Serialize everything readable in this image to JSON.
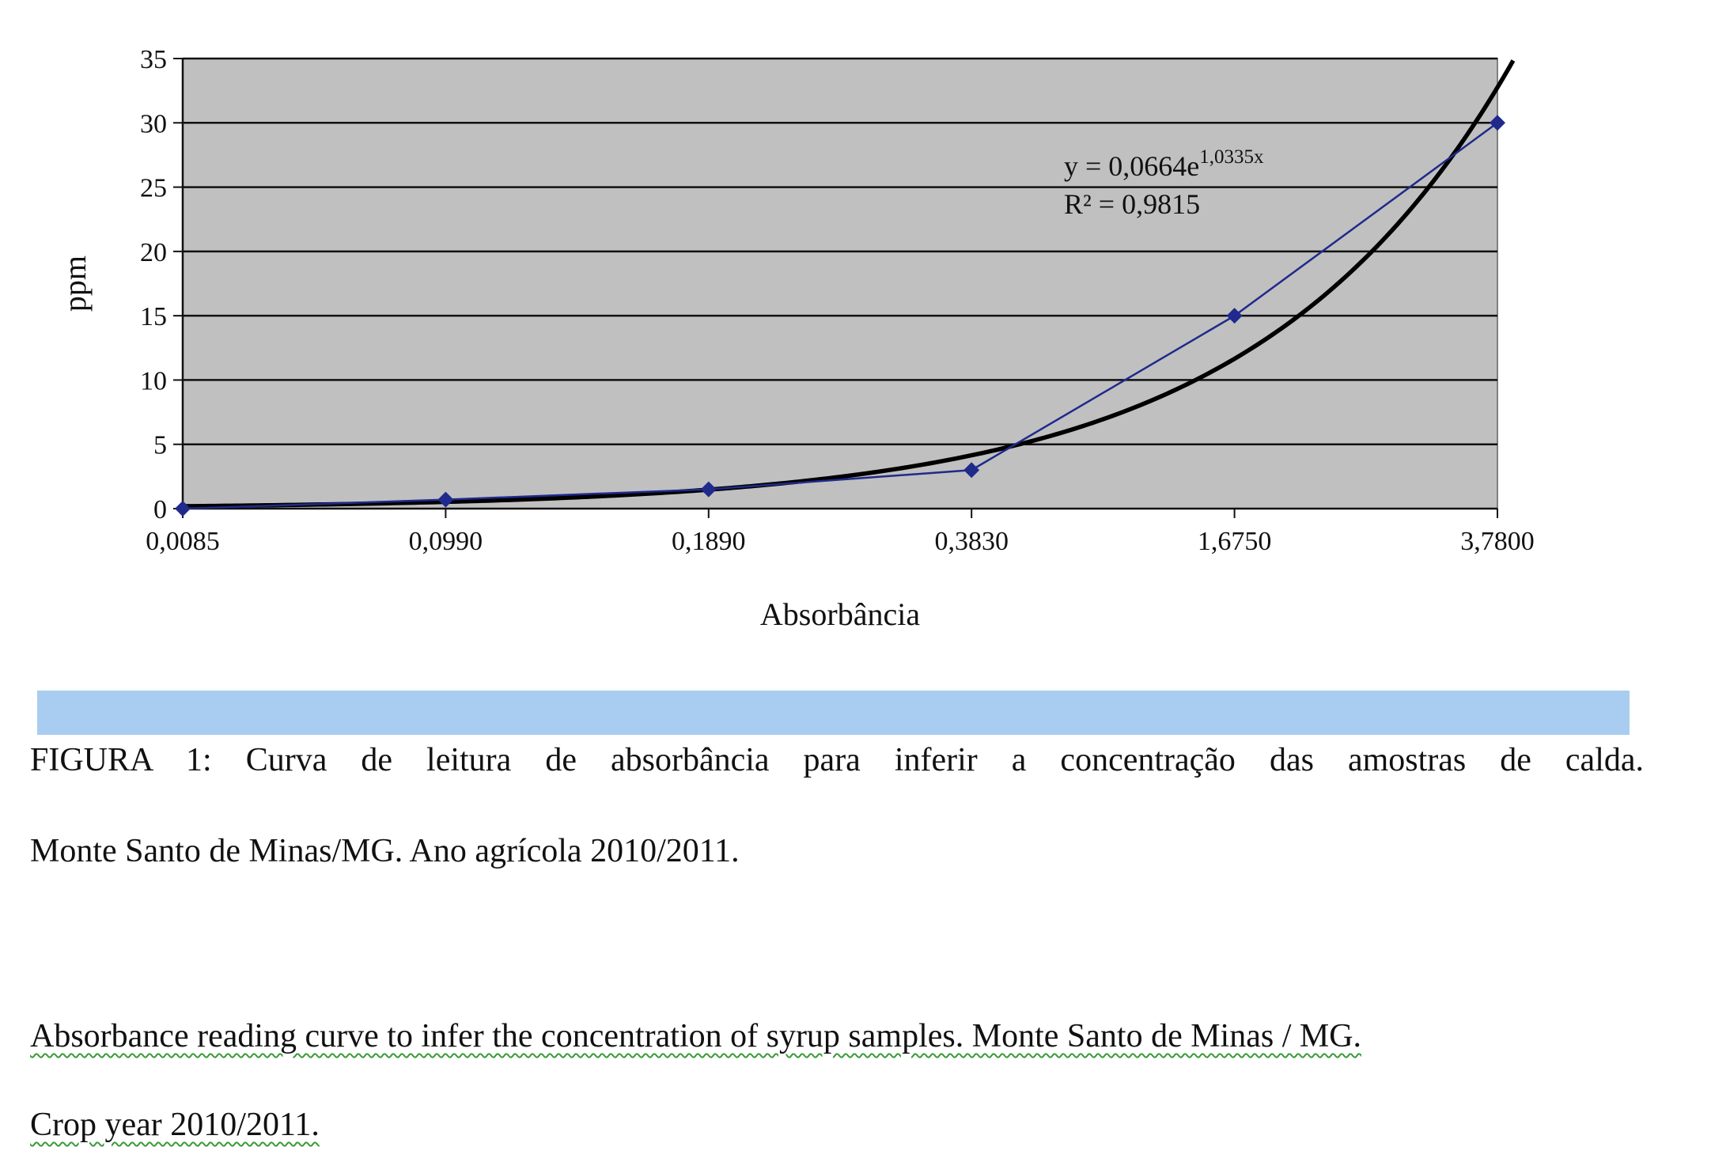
{
  "chart_data": {
    "type": "line",
    "categories": [
      "0,0085",
      "0,0990",
      "0,1890",
      "0,3830",
      "1,6750",
      "3,7800"
    ],
    "series": [
      {
        "values": [
          0,
          0.7,
          1.5,
          3,
          15,
          30
        ],
        "color": "#1f2a8c",
        "marker": "diamond"
      }
    ],
    "trendline": {
      "type": "exponential",
      "equation_prefix": "y = 0,0664e",
      "equation_exponent": "1,0335x",
      "r2_text": "R² = 0,9815",
      "a": 0.0664,
      "b": 1.0335,
      "color": "#000000"
    },
    "xlabel": "Absorbância",
    "ylabel": "ppm",
    "ylim": [
      0,
      35
    ],
    "yticks": [
      "0",
      "5",
      "10",
      "15",
      "20",
      "25",
      "30",
      "35"
    ],
    "grid": true,
    "plot_background": "#c0c0c0",
    "legend": "none"
  },
  "caption": {
    "pt_line1": "FIGURA 1: Curva de leitura de absorbância para inferir a concentração das amostras de calda.",
    "pt_line2": "Monte Santo de Minas/MG. Ano agrícola 2010/2011.",
    "en_line1": "Absorbance reading curve to infer the concentration of syrup samples.  Monte Santo de Minas / MG.",
    "en_line2": "Crop year 2010/2011."
  },
  "colors": {
    "band": "#a9cdf0",
    "spellcheck_underline": "#3a9a3a"
  }
}
